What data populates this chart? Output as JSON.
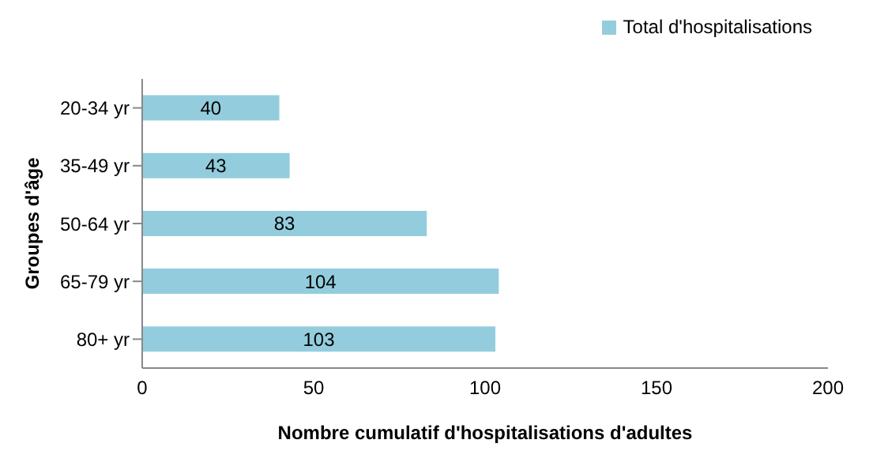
{
  "chart_data": {
    "type": "bar",
    "orientation": "horizontal",
    "categories": [
      "20-34 yr",
      "35-49 yr",
      "50-64 yr",
      "65-79 yr",
      "80+ yr"
    ],
    "series": [
      {
        "name": "Total d'hospitalisations",
        "color": "#93cddd",
        "values": [
          40,
          43,
          83,
          104,
          103
        ]
      }
    ],
    "xlabel": "Nombre cumulatif d'hospitalisations  d'adultes",
    "ylabel": "Groupes d'âge",
    "xlim": [
      0,
      200
    ],
    "xticks": [
      0,
      50,
      100,
      150,
      200
    ],
    "grid": false,
    "legend": "top right",
    "data_labels": true
  }
}
